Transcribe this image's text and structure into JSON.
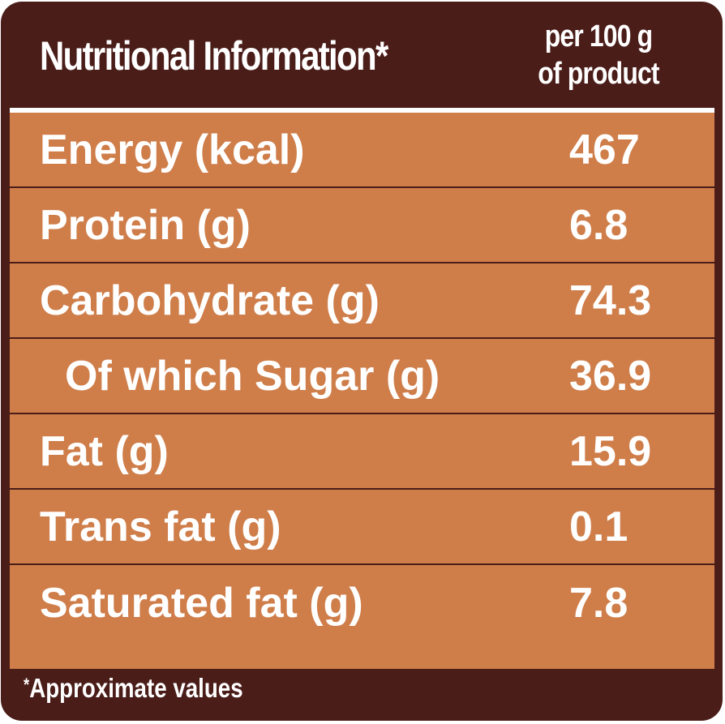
{
  "header": {
    "title": "Nutritional Information*",
    "column_line1": "per 100 g",
    "column_line2": "of product"
  },
  "rows": [
    {
      "label": "Energy (kcal)",
      "value": "467"
    },
    {
      "label": "Protein (g)",
      "value": "6.8"
    },
    {
      "label": "Carbohydrate (g)",
      "value": "74.3"
    },
    {
      "label": "Of which Sugar (g)",
      "value": "36.9"
    },
    {
      "label": "Fat (g)",
      "value": "15.9"
    },
    {
      "label": "Trans fat (g)",
      "value": "0.1"
    },
    {
      "label": "Saturated fat (g)",
      "value": "7.8"
    }
  ],
  "footnote": {
    "marker": "*",
    "text": "Approximate values"
  },
  "colors": {
    "frame": "#4a1d19",
    "table_fill": "#cf7e4a",
    "text": "#ffffff"
  }
}
